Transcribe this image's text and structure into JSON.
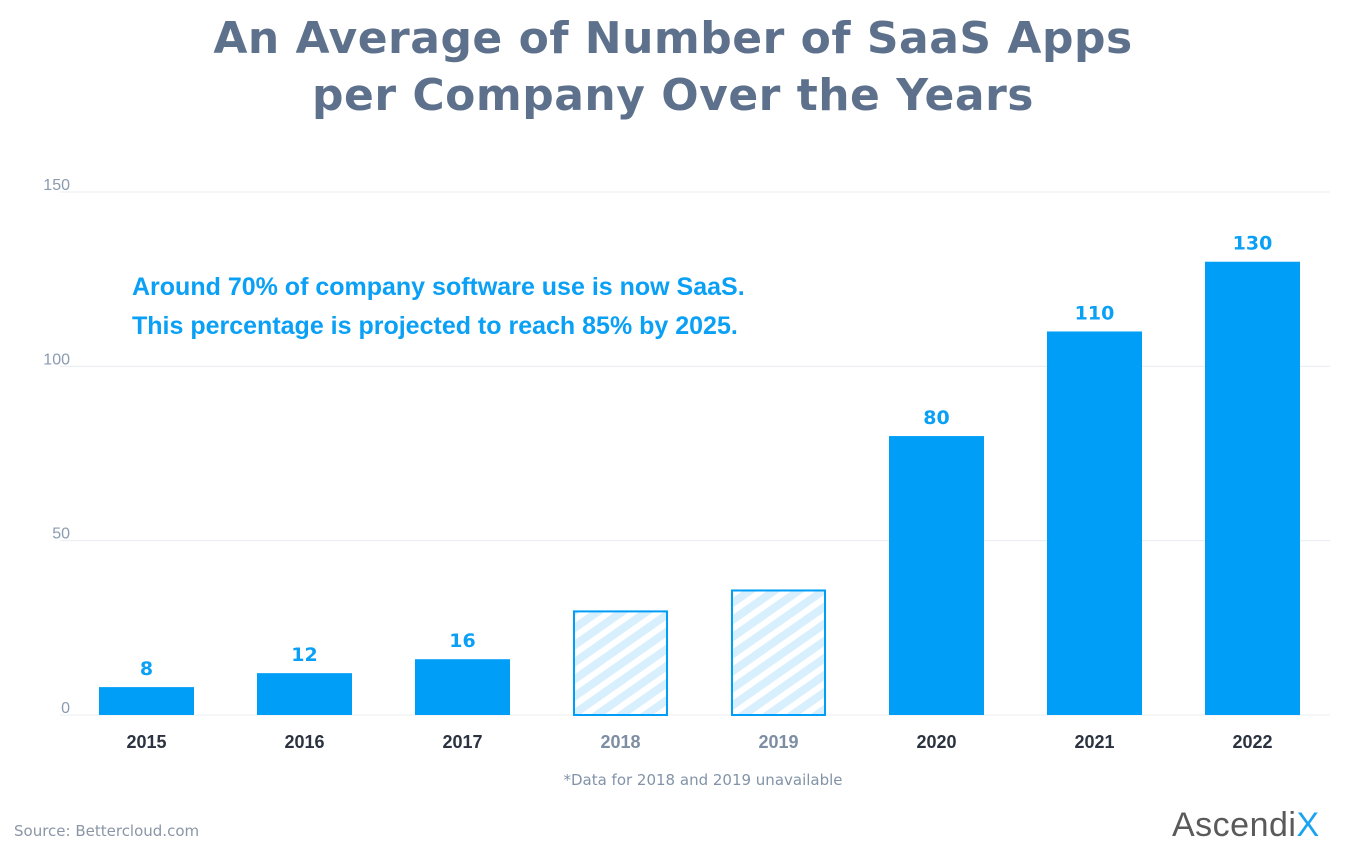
{
  "colors": {
    "title": "#5e718c",
    "bar": "#009ef7",
    "hatched_fill": "#d8effd",
    "grid": "#e8ecf0",
    "annotation": "#0aa0f5"
  },
  "chart_data": {
    "type": "bar",
    "title_lines": [
      "An Average of Number of SaaS Apps",
      "per Company Over the Years"
    ],
    "categories": [
      "2015",
      "2016",
      "2017",
      "2018",
      "2019",
      "2020",
      "2021",
      "2022"
    ],
    "values": [
      8,
      12,
      16,
      30,
      36,
      80,
      110,
      130
    ],
    "data_labels": [
      "8",
      "12",
      "16",
      "",
      "",
      "80",
      "110",
      "130"
    ],
    "unavailable": [
      false,
      false,
      false,
      true,
      true,
      false,
      false,
      false
    ],
    "ylim": [
      0,
      150
    ],
    "yticks": [
      "0",
      "50",
      "100",
      "150"
    ],
    "grid": true,
    "xlabel": "",
    "ylabel": "",
    "annotation_lines": [
      "Around 70% of company software use is now SaaS.",
      "This percentage is projected to reach 85% by 2025."
    ],
    "footnote": "*Data for 2018 and 2019 unavailable"
  },
  "source": "Source:  Bettercloud.com",
  "logo": {
    "text": "Ascendi",
    "accent": "X"
  }
}
